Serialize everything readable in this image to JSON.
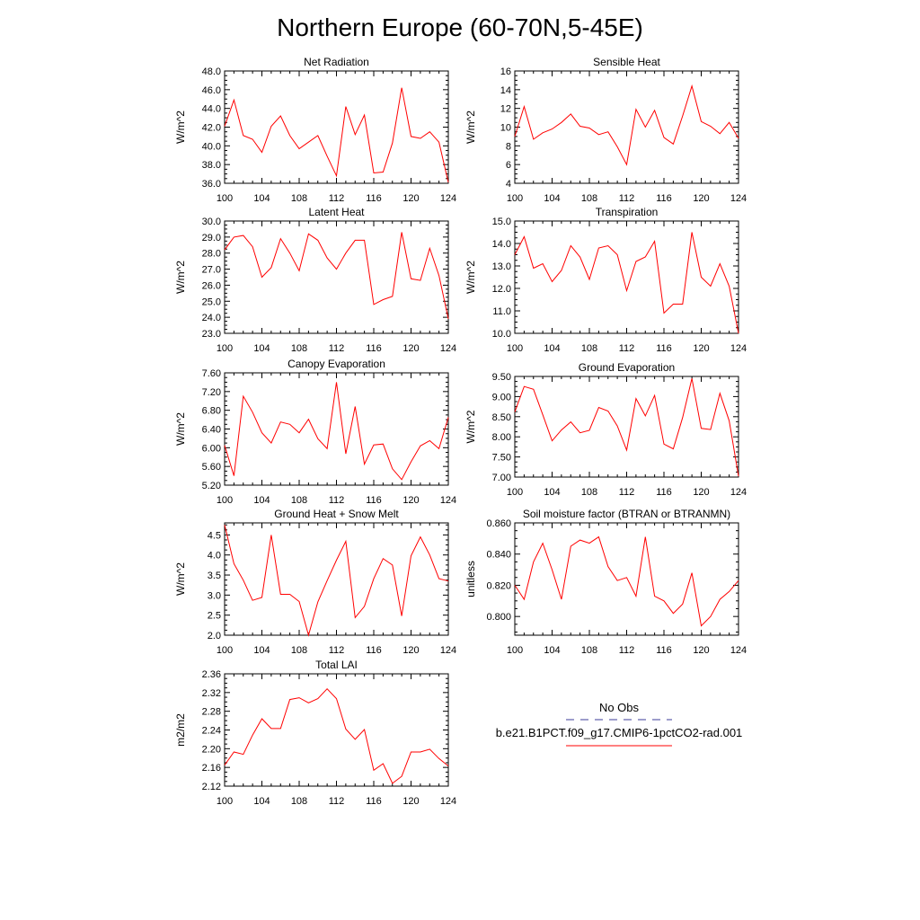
{
  "title": "Northern Europe (60-70N,5-45E)",
  "legend": {
    "entries": [
      {
        "label": "No Obs",
        "style": "dashed",
        "color": "#3b3b9a"
      },
      {
        "label": "b.e21.B1PCT.f09_g17.CMIP6-1pctCO2-rad.001",
        "style": "solid",
        "color": "#ff0000"
      }
    ]
  },
  "chart_data": [
    {
      "type": "line",
      "title": "Net Radiation",
      "ylabel": "W/m^2",
      "xlabel": "",
      "xlim": [
        100,
        124
      ],
      "ylim": [
        36,
        48
      ],
      "xticks": [
        100,
        104,
        108,
        112,
        116,
        120,
        124
      ],
      "yticks": [
        36,
        38,
        40,
        42,
        44,
        46,
        48
      ],
      "ydec": 1,
      "series": [
        {
          "color": "#ff0000",
          "x": [
            100,
            101,
            102,
            103,
            104,
            105,
            106,
            107,
            108,
            109,
            110,
            111,
            112,
            113,
            114,
            115,
            116,
            117,
            118,
            119,
            120,
            121,
            122,
            123,
            124
          ],
          "values": [
            42.1,
            44.9,
            41.1,
            40.7,
            39.3,
            42.1,
            43.2,
            41.1,
            39.7,
            40.4,
            41.1,
            38.9,
            36.8,
            44.2,
            41.2,
            43.3,
            37.1,
            37.2,
            40.3,
            46.2,
            41.0,
            40.8,
            41.5,
            40.4,
            36.1
          ]
        }
      ]
    },
    {
      "type": "line",
      "title": "Sensible Heat",
      "ylabel": "W/m^2",
      "xlabel": "",
      "xlim": [
        100,
        124
      ],
      "ylim": [
        4,
        16
      ],
      "xticks": [
        100,
        104,
        108,
        112,
        116,
        120,
        124
      ],
      "yticks": [
        4,
        6,
        8,
        10,
        12,
        14,
        16
      ],
      "ydec": 0,
      "series": [
        {
          "color": "#ff0000",
          "x": [
            100,
            101,
            102,
            103,
            104,
            105,
            106,
            107,
            108,
            109,
            110,
            111,
            112,
            113,
            114,
            115,
            116,
            117,
            118,
            119,
            120,
            121,
            122,
            123,
            124
          ],
          "values": [
            9.0,
            12.2,
            8.7,
            9.4,
            9.8,
            10.5,
            11.4,
            10.1,
            9.9,
            9.2,
            9.5,
            7.9,
            6.0,
            11.9,
            10.0,
            11.8,
            8.9,
            8.2,
            11.2,
            14.4,
            10.6,
            10.1,
            9.3,
            10.5,
            8.8
          ]
        }
      ]
    },
    {
      "type": "line",
      "title": "Latent Heat",
      "ylabel": "W/m^2",
      "xlabel": "",
      "xlim": [
        100,
        124
      ],
      "ylim": [
        23,
        30
      ],
      "xticks": [
        100,
        104,
        108,
        112,
        116,
        120,
        124
      ],
      "yticks": [
        23,
        24,
        25,
        26,
        27,
        28,
        29,
        30
      ],
      "ydec": 1,
      "series": [
        {
          "color": "#ff0000",
          "x": [
            100,
            101,
            102,
            103,
            104,
            105,
            106,
            107,
            108,
            109,
            110,
            111,
            112,
            113,
            114,
            115,
            116,
            117,
            118,
            119,
            120,
            121,
            122,
            123,
            124
          ],
          "values": [
            28.2,
            29.0,
            29.1,
            28.4,
            26.5,
            27.1,
            28.9,
            28.0,
            26.9,
            29.2,
            28.8,
            27.7,
            27.0,
            28.0,
            28.8,
            28.8,
            24.8,
            25.1,
            25.3,
            29.3,
            26.4,
            26.3,
            28.3,
            26.6,
            23.9
          ]
        }
      ]
    },
    {
      "type": "line",
      "title": "Transpiration",
      "ylabel": "W/m^2",
      "xlabel": "",
      "xlim": [
        100,
        124
      ],
      "ylim": [
        10,
        15
      ],
      "xticks": [
        100,
        104,
        108,
        112,
        116,
        120,
        124
      ],
      "yticks": [
        10,
        11,
        12,
        13,
        14,
        15
      ],
      "ydec": 1,
      "series": [
        {
          "color": "#ff0000",
          "x": [
            100,
            101,
            102,
            103,
            104,
            105,
            106,
            107,
            108,
            109,
            110,
            111,
            112,
            113,
            114,
            115,
            116,
            117,
            118,
            119,
            120,
            121,
            122,
            123,
            124
          ],
          "values": [
            13.5,
            14.3,
            12.9,
            13.1,
            12.3,
            12.8,
            13.9,
            13.4,
            12.4,
            13.8,
            13.9,
            13.5,
            11.9,
            13.2,
            13.4,
            14.1,
            10.9,
            11.3,
            11.3,
            14.5,
            12.5,
            12.1,
            13.1,
            12.1,
            10.0
          ]
        }
      ]
    },
    {
      "type": "line",
      "title": "Canopy Evaporation",
      "ylabel": "W/m^2",
      "xlabel": "",
      "xlim": [
        100,
        124
      ],
      "ylim": [
        5.2,
        7.6
      ],
      "xticks": [
        100,
        104,
        108,
        112,
        116,
        120,
        124
      ],
      "yticks": [
        5.2,
        5.6,
        6.0,
        6.4,
        6.8,
        7.2,
        7.6
      ],
      "ydec": 2,
      "series": [
        {
          "color": "#ff0000",
          "x": [
            100,
            101,
            102,
            103,
            104,
            105,
            106,
            107,
            108,
            109,
            110,
            111,
            112,
            113,
            114,
            115,
            116,
            117,
            118,
            119,
            120,
            121,
            122,
            123,
            124
          ],
          "values": [
            6.05,
            5.4,
            7.1,
            6.76,
            6.32,
            6.1,
            6.55,
            6.5,
            6.32,
            6.61,
            6.19,
            5.98,
            7.4,
            5.87,
            6.88,
            5.65,
            6.06,
            6.08,
            5.55,
            5.32,
            5.7,
            6.04,
            6.15,
            5.98,
            6.65
          ]
        }
      ]
    },
    {
      "type": "line",
      "title": "Ground Evaporation",
      "ylabel": "W/m^2",
      "xlabel": "",
      "xlim": [
        100,
        124
      ],
      "ylim": [
        7.0,
        9.5
      ],
      "xticks": [
        100,
        104,
        108,
        112,
        116,
        120,
        124
      ],
      "yticks": [
        7.0,
        7.5,
        8.0,
        8.5,
        9.0,
        9.5
      ],
      "ydec": 2,
      "series": [
        {
          "color": "#ff0000",
          "x": [
            100,
            101,
            102,
            103,
            104,
            105,
            106,
            107,
            108,
            109,
            110,
            111,
            112,
            113,
            114,
            115,
            116,
            117,
            118,
            119,
            120,
            121,
            122,
            123,
            124
          ],
          "values": [
            8.62,
            9.25,
            9.18,
            8.55,
            7.9,
            8.17,
            8.37,
            8.1,
            8.16,
            8.73,
            8.64,
            8.27,
            7.67,
            8.95,
            8.52,
            9.03,
            7.82,
            7.7,
            8.48,
            9.45,
            8.21,
            8.18,
            9.08,
            8.4,
            7.02
          ]
        }
      ]
    },
    {
      "type": "line",
      "title": "Ground Heat + Snow Melt",
      "ylabel": "W/m^2",
      "xlabel": "",
      "xlim": [
        100,
        124
      ],
      "ylim": [
        2.0,
        4.8
      ],
      "xticks": [
        100,
        104,
        108,
        112,
        116,
        120,
        124
      ],
      "yticks": [
        2.0,
        2.5,
        3.0,
        3.5,
        4.0,
        4.5
      ],
      "ydec": 1,
      "series": [
        {
          "color": "#ff0000",
          "x": [
            100,
            101,
            102,
            103,
            104,
            105,
            106,
            107,
            108,
            109,
            110,
            111,
            112,
            113,
            114,
            115,
            116,
            117,
            118,
            119,
            120,
            121,
            122,
            123,
            124
          ],
          "values": [
            4.75,
            3.78,
            3.37,
            2.87,
            2.94,
            4.5,
            3.02,
            3.02,
            2.84,
            2.0,
            2.83,
            3.36,
            3.87,
            4.34,
            2.44,
            2.72,
            3.41,
            3.91,
            3.75,
            2.48,
            3.98,
            4.45,
            4.0,
            3.41,
            3.35
          ]
        }
      ]
    },
    {
      "type": "line",
      "title": "Soil moisture factor (BTRAN or BTRANMN)",
      "ylabel": "unitless",
      "xlabel": "",
      "xlim": [
        100,
        124
      ],
      "ylim": [
        0.788,
        0.86
      ],
      "xticks": [
        100,
        104,
        108,
        112,
        116,
        120,
        124
      ],
      "yticks": [
        0.8,
        0.82,
        0.84,
        0.86
      ],
      "ydec": 3,
      "series": [
        {
          "color": "#ff0000",
          "x": [
            100,
            101,
            102,
            103,
            104,
            105,
            106,
            107,
            108,
            109,
            110,
            111,
            112,
            113,
            114,
            115,
            116,
            117,
            118,
            119,
            120,
            121,
            122,
            123,
            124
          ],
          "values": [
            0.82,
            0.811,
            0.835,
            0.847,
            0.83,
            0.811,
            0.845,
            0.849,
            0.847,
            0.851,
            0.832,
            0.823,
            0.825,
            0.813,
            0.851,
            0.813,
            0.81,
            0.802,
            0.808,
            0.828,
            0.794,
            0.8,
            0.811,
            0.816,
            0.823
          ]
        }
      ]
    },
    {
      "type": "line",
      "title": "Total LAI",
      "ylabel": "m2/m2",
      "xlabel": "",
      "xlim": [
        100,
        124
      ],
      "ylim": [
        2.12,
        2.36
      ],
      "xticks": [
        100,
        104,
        108,
        112,
        116,
        120,
        124
      ],
      "yticks": [
        2.12,
        2.16,
        2.2,
        2.24,
        2.28,
        2.32,
        2.36
      ],
      "ydec": 2,
      "series": [
        {
          "color": "#ff0000",
          "x": [
            100,
            101,
            102,
            103,
            104,
            105,
            106,
            107,
            108,
            109,
            110,
            111,
            112,
            113,
            114,
            115,
            116,
            117,
            118,
            119,
            120,
            121,
            122,
            123,
            124
          ],
          "values": [
            2.165,
            2.193,
            2.188,
            2.229,
            2.264,
            2.243,
            2.243,
            2.305,
            2.309,
            2.298,
            2.307,
            2.328,
            2.307,
            2.242,
            2.22,
            2.241,
            2.154,
            2.168,
            2.126,
            2.141,
            2.193,
            2.193,
            2.199,
            2.179,
            2.163
          ]
        }
      ]
    }
  ]
}
